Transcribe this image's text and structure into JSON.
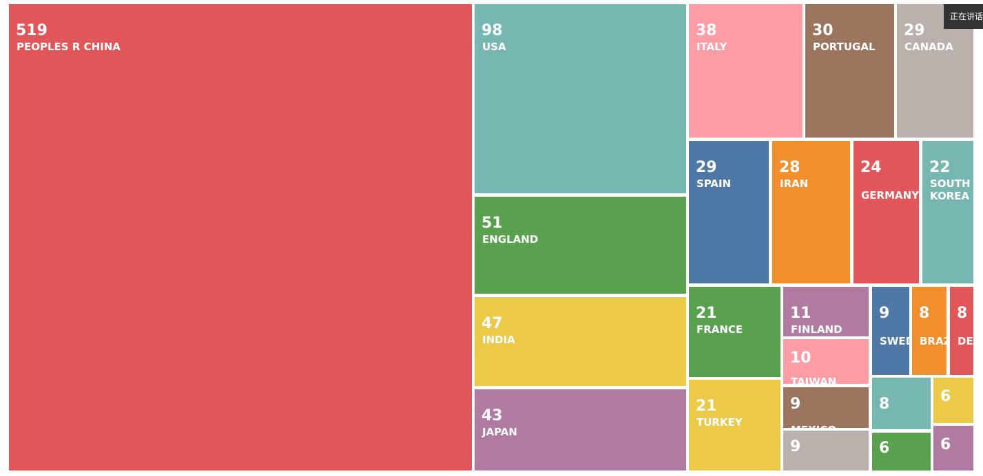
{
  "status_badge": "正在讲话",
  "chart_data": {
    "type": "treemap",
    "title": "",
    "items": [
      {
        "label": "PEOPLES R CHINA",
        "value": 519,
        "color": "#e15759"
      },
      {
        "label": "USA",
        "value": 98,
        "color": "#76b7b2"
      },
      {
        "label": "ENGLAND",
        "value": 51,
        "color": "#59a14f"
      },
      {
        "label": "INDIA",
        "value": 47,
        "color": "#edc948"
      },
      {
        "label": "JAPAN",
        "value": 43,
        "color": "#b07aa1"
      },
      {
        "label": "ITALY",
        "value": 38,
        "color": "#ff9da7"
      },
      {
        "label": "PORTUGAL",
        "value": 30,
        "color": "#9c755f"
      },
      {
        "label": "CANADA",
        "value": 29,
        "color": "#bab0ac"
      },
      {
        "label": "SPAIN",
        "value": 29,
        "color": "#4e79a7"
      },
      {
        "label": "IRAN",
        "value": 28,
        "color": "#f28e2b"
      },
      {
        "label": "GERMANY",
        "value": 24,
        "color": "#e15759"
      },
      {
        "label": "SOUTH KOREA",
        "value": 22,
        "color": "#76b7b2"
      },
      {
        "label": "FRANCE",
        "value": 21,
        "color": "#59a14f"
      },
      {
        "label": "TURKEY",
        "value": 21,
        "color": "#edc948"
      },
      {
        "label": "FINLAND",
        "value": 11,
        "color": "#b07aa1"
      },
      {
        "label": "TAIWAN",
        "value": 10,
        "color": "#ff9da7"
      },
      {
        "label": "MEXICO",
        "value": 9,
        "color": "#9c755f"
      },
      {
        "label": "",
        "value": 9,
        "color": "#bab0ac"
      },
      {
        "label": "SWEDEN",
        "value": 9,
        "color": "#4e79a7"
      },
      {
        "label": "BRAZIL",
        "value": 8,
        "color": "#f28e2b"
      },
      {
        "label": "DENMARK",
        "value": 8,
        "color": "#e15759"
      },
      {
        "label": "",
        "value": 8,
        "color": "#76b7b2"
      },
      {
        "label": "",
        "value": 6,
        "color": "#edc948"
      },
      {
        "label": "",
        "value": 6,
        "color": "#59a14f"
      },
      {
        "label": "",
        "value": 6,
        "color": "#b07aa1"
      }
    ]
  }
}
